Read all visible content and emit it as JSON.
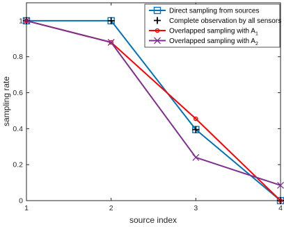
{
  "chart_data": {
    "type": "line",
    "xlabel": "source index",
    "ylabel": "sampling rate",
    "xlim": [
      1,
      4
    ],
    "ylim": [
      0,
      1.1
    ],
    "x_ticks": [
      1,
      2,
      3,
      4
    ],
    "y_ticks": [
      0,
      0.2,
      0.4,
      0.6,
      0.8,
      1
    ],
    "x_tick_labels": [
      "1",
      "2",
      "3",
      "4"
    ],
    "y_tick_labels": [
      "0",
      "0.2",
      "0.4",
      "0.6",
      "0.8",
      "1"
    ],
    "grid": false,
    "legend_position": "top-right",
    "x": [
      1,
      2,
      3,
      4
    ],
    "series": [
      {
        "name": "Direct sampling from sources",
        "values": [
          1,
          1,
          0.395,
          0
        ],
        "color": "#0072BD",
        "marker": "square"
      },
      {
        "name": "Complete observation by all sensors",
        "values": [
          1,
          1,
          0.395,
          0
        ],
        "color": "#000000",
        "marker": "plus"
      },
      {
        "name": "Overlapped sampling with A",
        "subscript": "1",
        "values": [
          1,
          0.88,
          0.455,
          0
        ],
        "color": "#FF0000",
        "marker": "circle"
      },
      {
        "name": "Overlapped sampling with A",
        "subscript": "2",
        "values": [
          1,
          0.88,
          0.24,
          0.085
        ],
        "color": "#7E2F8E",
        "marker": "x"
      }
    ]
  }
}
